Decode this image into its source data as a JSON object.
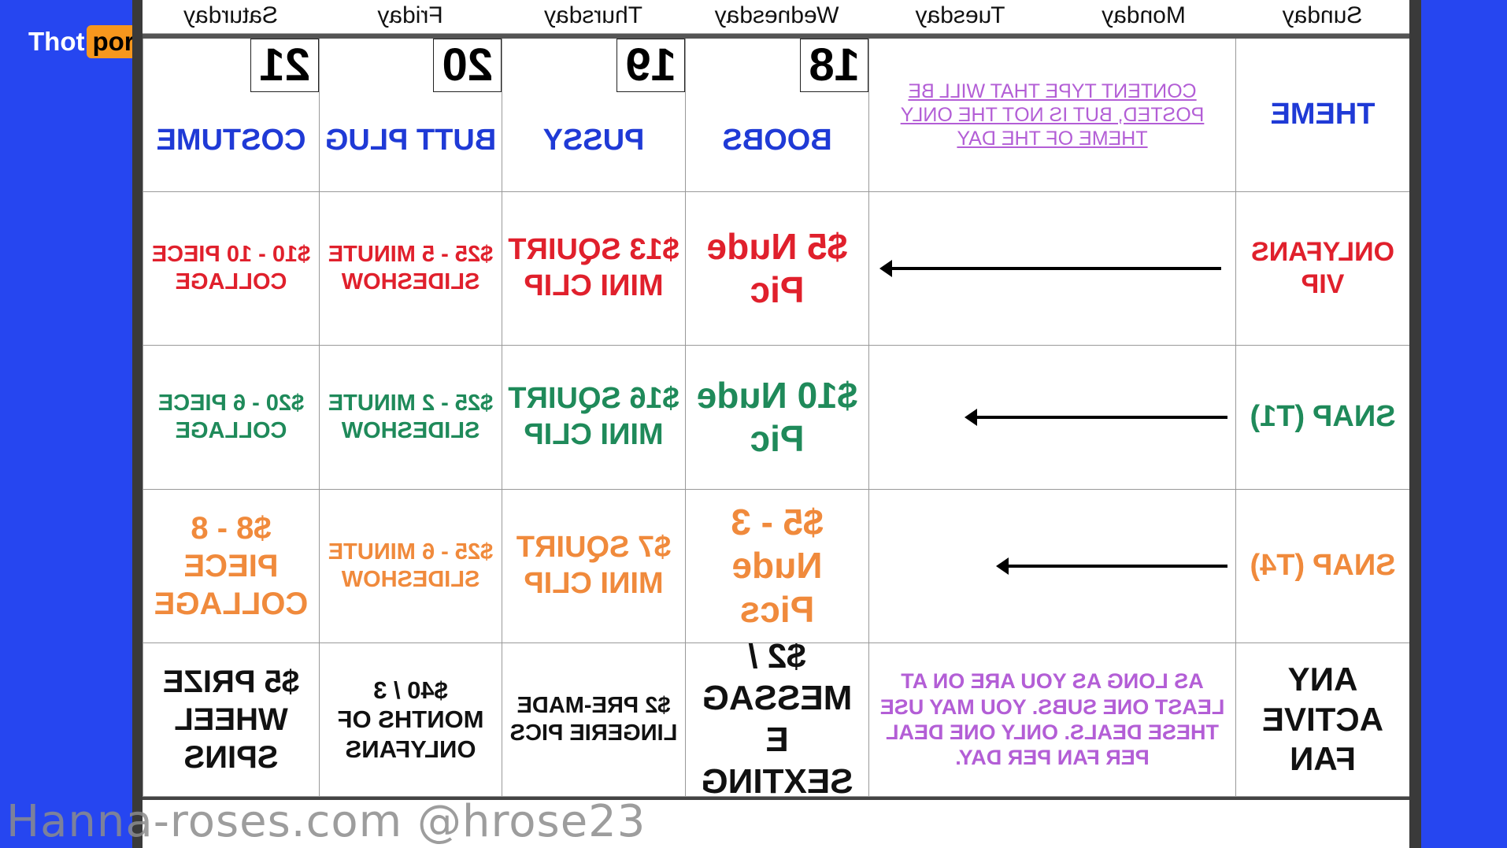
{
  "logo": {
    "part1": "Thot",
    "part2": "porn"
  },
  "days": [
    "Sunday",
    "Monday",
    "Tuesday",
    "Wednesday",
    "Thursday",
    "Friday",
    "Saturday"
  ],
  "dates": {
    "wednesday": "18",
    "thursday": "19",
    "friday": "20",
    "saturday": "21"
  },
  "rows": [
    {
      "label": "THEME",
      "note": "CONTENT TYPE THAT WILL BE POSTED, BUT IS NOT THE ONLY THEME OF THE DAY",
      "wed": "BOOBS",
      "thu": "PUSSY",
      "fri": "BUTT PLUG",
      "sat": "COSTUME"
    },
    {
      "label": "ONLYFANS VIP",
      "wed": "$5 Nude Pic",
      "thu": "$13 SQUIRT MINI CLIP",
      "fri": "$25 - 5 MINUTE SLIDESHOW",
      "sat": "$10 - 10 PIECE COLLAGE"
    },
    {
      "label": "SNAP (T1)",
      "wed": "$10 Nude Pic",
      "thu": "$16 SQUIRT MINI CLIP",
      "fri": "$25 - 2 MINUTE SLIDESHOW",
      "sat": "$20 - 6 PIECE COLLAGE"
    },
    {
      "label": "SNAP (T4)",
      "wed": "$5 - 3 Nude Pics",
      "thu": "$7 SQUIRT MINI CLIP",
      "fri": "$25 - 6 MINUTE SLIDESHOW",
      "sat": "$8 - 8 PIECE COLLAGE"
    },
    {
      "label": "ANY ACTIVE FAN",
      "note": "AS LONG AS YOU ARE ON AT LEAST ONE SUBS. YOU MAY USE THESE DEALS. ONLY ONE DEAL PER FAN PER DAY.",
      "wed": "$2 / MESSAGE SEXTING",
      "thu": "$2 PRE-MADE LINGERIE PICS",
      "fri": "$40 / 3 MONTHS OF ONLYFANS",
      "sat": "$5 PRIZE WHEEL SPINS"
    }
  ],
  "watermark": "Hanna-roses.com @hrose23"
}
